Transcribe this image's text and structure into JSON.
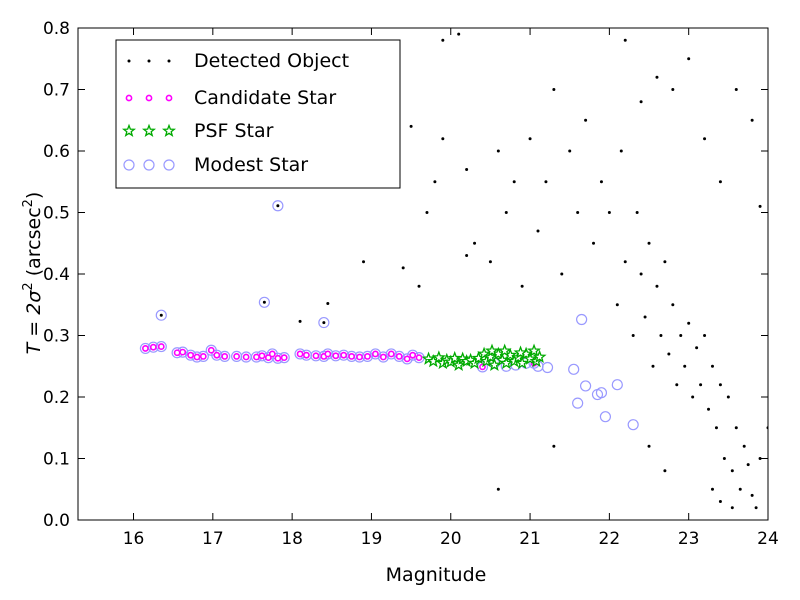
{
  "chart_data": {
    "type": "scatter",
    "title": "",
    "xlabel": "Magnitude",
    "ylabel": {
      "prefix": "T = 2σ",
      "superscript_1": "2",
      "middle": " (arcsec",
      "superscript_2": "2",
      "suffix": ")"
    },
    "xlim": [
      15.3,
      24.0
    ],
    "ylim": [
      0.0,
      0.8
    ],
    "xticks": [
      "16",
      "17",
      "18",
      "19",
      "20",
      "21",
      "22",
      "23",
      "24"
    ],
    "yticks": [
      "0.0",
      "0.1",
      "0.2",
      "0.3",
      "0.4",
      "0.5",
      "0.6",
      "0.7",
      "0.8"
    ],
    "grid": false,
    "legend_position": "top-left",
    "colors": {
      "detected": "#000000",
      "candidate": "#ff00ff",
      "psf": "#00aa00",
      "modest": "#9999ff"
    },
    "legend": [
      {
        "key": "detected",
        "label": "Detected Object"
      },
      {
        "key": "candidate",
        "label": "Candidate Star"
      },
      {
        "key": "psf",
        "label": "PSF Star"
      },
      {
        "key": "modest",
        "label": "Modest Star"
      }
    ],
    "series": [
      {
        "name": "Modest Star",
        "marker": "open-circle",
        "points": [
          [
            16.15,
            0.279
          ],
          [
            16.25,
            0.281
          ],
          [
            16.35,
            0.282
          ],
          [
            16.55,
            0.272
          ],
          [
            16.62,
            0.273
          ],
          [
            16.72,
            0.268
          ],
          [
            16.8,
            0.265
          ],
          [
            16.88,
            0.266
          ],
          [
            16.98,
            0.276
          ],
          [
            17.05,
            0.268
          ],
          [
            17.15,
            0.266
          ],
          [
            17.3,
            0.266
          ],
          [
            17.42,
            0.265
          ],
          [
            17.55,
            0.265
          ],
          [
            17.62,
            0.267
          ],
          [
            17.7,
            0.264
          ],
          [
            17.75,
            0.27
          ],
          [
            17.82,
            0.263
          ],
          [
            17.9,
            0.264
          ],
          [
            18.1,
            0.27
          ],
          [
            18.18,
            0.268
          ],
          [
            18.3,
            0.267
          ],
          [
            18.4,
            0.266
          ],
          [
            18.45,
            0.27
          ],
          [
            18.55,
            0.267
          ],
          [
            18.65,
            0.268
          ],
          [
            18.75,
            0.266
          ],
          [
            18.85,
            0.265
          ],
          [
            18.95,
            0.266
          ],
          [
            19.05,
            0.27
          ],
          [
            19.15,
            0.265
          ],
          [
            19.25,
            0.27
          ],
          [
            19.35,
            0.266
          ],
          [
            19.45,
            0.262
          ],
          [
            19.52,
            0.268
          ],
          [
            19.6,
            0.264
          ],
          [
            16.35,
            0.333
          ],
          [
            17.65,
            0.354
          ],
          [
            17.82,
            0.511
          ],
          [
            18.4,
            0.321
          ],
          [
            20.4,
            0.249
          ],
          [
            20.55,
            0.255
          ],
          [
            20.7,
            0.25
          ],
          [
            20.82,
            0.252
          ],
          [
            20.95,
            0.255
          ],
          [
            21.05,
            0.255
          ],
          [
            21.1,
            0.25
          ],
          [
            21.22,
            0.248
          ],
          [
            21.55,
            0.245
          ],
          [
            21.6,
            0.19
          ],
          [
            21.7,
            0.218
          ],
          [
            21.85,
            0.204
          ],
          [
            21.9,
            0.207
          ],
          [
            21.95,
            0.168
          ],
          [
            22.1,
            0.22
          ],
          [
            22.3,
            0.155
          ],
          [
            21.65,
            0.326
          ]
        ]
      },
      {
        "name": "Detected Object",
        "marker": "dot",
        "points": [
          [
            16.15,
            0.279
          ],
          [
            16.35,
            0.333
          ],
          [
            17.65,
            0.354
          ],
          [
            17.82,
            0.511
          ],
          [
            18.4,
            0.321
          ],
          [
            18.45,
            0.352
          ],
          [
            18.1,
            0.323
          ],
          [
            17.4,
            0.656
          ],
          [
            18.3,
            0.615
          ],
          [
            18.6,
            0.62
          ],
          [
            18.9,
            0.66
          ],
          [
            19.1,
            0.7
          ],
          [
            19.3,
            0.69
          ],
          [
            19.5,
            0.64
          ],
          [
            19.6,
            0.38
          ],
          [
            19.7,
            0.5
          ],
          [
            19.8,
            0.55
          ],
          [
            19.9,
            0.78
          ],
          [
            20.1,
            0.79
          ],
          [
            19.9,
            0.62
          ],
          [
            20.2,
            0.57
          ],
          [
            20.3,
            0.45
          ],
          [
            20.5,
            0.42
          ],
          [
            20.6,
            0.6
          ],
          [
            20.7,
            0.5
          ],
          [
            20.8,
            0.55
          ],
          [
            20.9,
            0.38
          ],
          [
            21.0,
            0.62
          ],
          [
            21.1,
            0.47
          ],
          [
            21.2,
            0.55
          ],
          [
            21.3,
            0.7
          ],
          [
            21.3,
            0.12
          ],
          [
            21.4,
            0.4
          ],
          [
            21.5,
            0.6
          ],
          [
            21.6,
            0.5
          ],
          [
            21.7,
            0.65
          ],
          [
            21.8,
            0.45
          ],
          [
            21.9,
            0.55
          ],
          [
            22.0,
            0.5
          ],
          [
            22.1,
            0.35
          ],
          [
            22.15,
            0.6
          ],
          [
            22.2,
            0.42
          ],
          [
            22.3,
            0.3
          ],
          [
            22.35,
            0.5
          ],
          [
            22.4,
            0.4
          ],
          [
            22.45,
            0.33
          ],
          [
            22.5,
            0.45
          ],
          [
            22.55,
            0.25
          ],
          [
            22.6,
            0.38
          ],
          [
            22.65,
            0.3
          ],
          [
            22.7,
            0.42
          ],
          [
            22.75,
            0.27
          ],
          [
            22.8,
            0.35
          ],
          [
            22.85,
            0.22
          ],
          [
            22.9,
            0.3
          ],
          [
            22.95,
            0.25
          ],
          [
            23.0,
            0.32
          ],
          [
            23.05,
            0.2
          ],
          [
            23.1,
            0.28
          ],
          [
            23.15,
            0.22
          ],
          [
            23.2,
            0.3
          ],
          [
            23.25,
            0.18
          ],
          [
            23.3,
            0.25
          ],
          [
            23.35,
            0.15
          ],
          [
            23.4,
            0.22
          ],
          [
            23.45,
            0.1
          ],
          [
            23.5,
            0.2
          ],
          [
            23.55,
            0.08
          ],
          [
            23.6,
            0.15
          ],
          [
            23.65,
            0.05
          ],
          [
            23.7,
            0.12
          ],
          [
            23.75,
            0.09
          ],
          [
            23.8,
            0.04
          ],
          [
            23.85,
            0.02
          ],
          [
            23.9,
            0.1
          ],
          [
            23.3,
            0.05
          ],
          [
            23.4,
            0.03
          ],
          [
            23.55,
            0.02
          ],
          [
            23.0,
            0.75
          ],
          [
            22.8,
            0.7
          ],
          [
            22.6,
            0.72
          ],
          [
            22.4,
            0.68
          ],
          [
            22.2,
            0.78
          ],
          [
            23.2,
            0.62
          ],
          [
            23.4,
            0.55
          ],
          [
            23.6,
            0.7
          ],
          [
            23.8,
            0.65
          ],
          [
            23.9,
            0.51
          ],
          [
            24.0,
            0.15
          ],
          [
            22.7,
            0.08
          ],
          [
            22.5,
            0.12
          ],
          [
            20.6,
            0.05
          ],
          [
            20.2,
            0.43
          ],
          [
            19.4,
            0.41
          ],
          [
            18.9,
            0.42
          ],
          [
            17.6,
            0.6
          ],
          [
            18.2,
            0.57
          ]
        ]
      },
      {
        "name": "Candidate Star",
        "marker": "small-circle",
        "points": [
          [
            16.15,
            0.279
          ],
          [
            16.25,
            0.281
          ],
          [
            16.35,
            0.282
          ],
          [
            16.55,
            0.272
          ],
          [
            16.62,
            0.273
          ],
          [
            16.72,
            0.268
          ],
          [
            16.8,
            0.265
          ],
          [
            16.88,
            0.266
          ],
          [
            16.98,
            0.276
          ],
          [
            17.05,
            0.268
          ],
          [
            17.15,
            0.266
          ],
          [
            17.3,
            0.266
          ],
          [
            17.42,
            0.265
          ],
          [
            17.55,
            0.265
          ],
          [
            17.62,
            0.267
          ],
          [
            17.7,
            0.264
          ],
          [
            17.75,
            0.27
          ],
          [
            17.82,
            0.263
          ],
          [
            17.9,
            0.264
          ],
          [
            18.1,
            0.27
          ],
          [
            18.18,
            0.268
          ],
          [
            18.3,
            0.267
          ],
          [
            18.4,
            0.266
          ],
          [
            18.45,
            0.27
          ],
          [
            18.55,
            0.267
          ],
          [
            18.65,
            0.268
          ],
          [
            18.75,
            0.266
          ],
          [
            18.85,
            0.265
          ],
          [
            18.95,
            0.266
          ],
          [
            19.05,
            0.27
          ],
          [
            19.15,
            0.265
          ],
          [
            19.25,
            0.27
          ],
          [
            19.35,
            0.266
          ],
          [
            19.45,
            0.262
          ],
          [
            19.52,
            0.268
          ],
          [
            19.6,
            0.264
          ],
          [
            20.4,
            0.249
          ],
          [
            21.05,
            0.255
          ]
        ]
      },
      {
        "name": "PSF Star",
        "marker": "star",
        "points": [
          [
            19.72,
            0.262
          ],
          [
            19.78,
            0.258
          ],
          [
            19.85,
            0.264
          ],
          [
            19.9,
            0.255
          ],
          [
            19.95,
            0.26
          ],
          [
            20.0,
            0.257
          ],
          [
            20.05,
            0.263
          ],
          [
            20.1,
            0.252
          ],
          [
            20.15,
            0.262
          ],
          [
            20.2,
            0.258
          ],
          [
            20.25,
            0.26
          ],
          [
            20.3,
            0.255
          ],
          [
            20.35,
            0.263
          ],
          [
            20.42,
            0.27
          ],
          [
            20.45,
            0.258
          ],
          [
            20.5,
            0.265
          ],
          [
            20.55,
            0.252
          ],
          [
            20.6,
            0.27
          ],
          [
            20.65,
            0.26
          ],
          [
            20.7,
            0.255
          ],
          [
            20.75,
            0.268
          ],
          [
            20.8,
            0.258
          ],
          [
            20.85,
            0.264
          ],
          [
            20.9,
            0.255
          ],
          [
            20.95,
            0.27
          ],
          [
            21.0,
            0.262
          ],
          [
            21.05,
            0.275
          ],
          [
            21.08,
            0.258
          ],
          [
            21.12,
            0.265
          ],
          [
            20.68,
            0.275
          ],
          [
            20.88,
            0.272
          ],
          [
            20.52,
            0.275
          ]
        ]
      }
    ]
  }
}
